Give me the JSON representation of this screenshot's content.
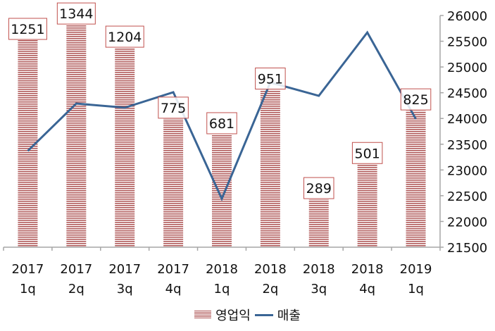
{
  "chart_data": {
    "type": "bar+line",
    "title": "",
    "categories": [
      "2017\n1q",
      "2017\n2q",
      "2017\n3q",
      "2017\n4q",
      "2018\n1q",
      "2018\n2q",
      "2018\n3q",
      "2018\n4q",
      "2019\n1q"
    ],
    "category_lines": [
      [
        "2017",
        "1q"
      ],
      [
        "2017",
        "2q"
      ],
      [
        "2017",
        "3q"
      ],
      [
        "2017",
        "4q"
      ],
      [
        "2018",
        "1q"
      ],
      [
        "2018",
        "2q"
      ],
      [
        "2018",
        "3q"
      ],
      [
        "2018",
        "4q"
      ],
      [
        "2019",
        "1q"
      ]
    ],
    "series": [
      {
        "name": "영업익",
        "type": "bar",
        "axis": "left (hidden)",
        "color": "#b05a5a",
        "pattern": "horizontal-stripes",
        "values": [
          1251,
          1344,
          1204,
          775,
          681,
          951,
          289,
          501,
          825
        ],
        "data_labels": [
          "1251",
          "1344",
          "1204",
          "775",
          "681",
          "951",
          "289",
          "501",
          "825"
        ]
      },
      {
        "name": "매출",
        "type": "line",
        "axis": "right",
        "color": "#3a6595",
        "values": [
          23370,
          24290,
          24210,
          24510,
          22440,
          24700,
          24440,
          25670,
          23990
        ]
      }
    ],
    "primary_ylim": [
      0,
      1400
    ],
    "secondary_ylim": [
      21500,
      26000
    ],
    "secondary_yticks": [
      "26000",
      "25500",
      "25000",
      "24500",
      "24000",
      "23500",
      "23000",
      "22500",
      "22000",
      "21500"
    ],
    "xlabel": "",
    "ylabel": "",
    "grid": false,
    "legend_position": "bottom"
  },
  "legend": {
    "bar_label": "영업익",
    "line_label": "매출"
  }
}
